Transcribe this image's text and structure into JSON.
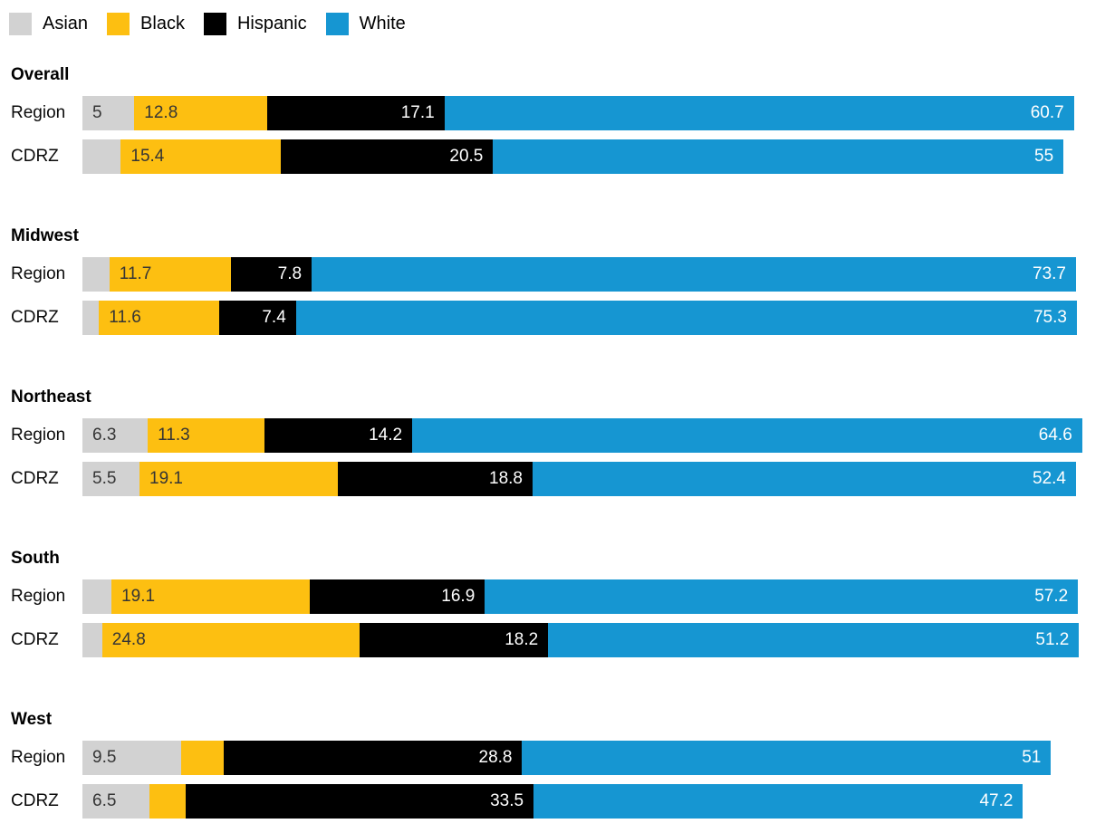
{
  "chart_data": {
    "type": "bar",
    "variant": "horizontal-stacked",
    "unit": "percent",
    "title": "",
    "legend_position": "top-left",
    "grid": false,
    "axes_visible": false,
    "value_label_min": 5,
    "xlim": [
      0,
      100
    ],
    "categories": [
      {
        "key": "asian",
        "label": "Asian",
        "color": "#d2d2d2",
        "value_text_color": "#353535",
        "value_align": "left"
      },
      {
        "key": "black",
        "label": "Black",
        "color": "#fdbf11",
        "value_text_color": "#353535",
        "value_align": "left"
      },
      {
        "key": "hispanic",
        "label": "Hispanic",
        "color": "#000000",
        "value_text_color": "#ffffff",
        "value_align": "right"
      },
      {
        "key": "white",
        "label": "White",
        "color": "#1696d2",
        "value_text_color": "#ffffff",
        "value_align": "right"
      }
    ],
    "row_labels": [
      "Region",
      "CDRZ"
    ],
    "groups": [
      {
        "name": "Overall",
        "rows": [
          {
            "label": "Region",
            "values": {
              "asian": 5,
              "black": 12.8,
              "hispanic": 17.1,
              "white": 60.7
            }
          },
          {
            "label": "CDRZ",
            "values": {
              "asian": 3.7,
              "black": 15.4,
              "hispanic": 20.5,
              "white": 55
            },
            "estimated": [
              "asian"
            ]
          }
        ]
      },
      {
        "name": "Midwest",
        "rows": [
          {
            "label": "Region",
            "values": {
              "asian": 2.6,
              "black": 11.7,
              "hispanic": 7.8,
              "white": 73.7
            },
            "estimated": [
              "asian"
            ]
          },
          {
            "label": "CDRZ",
            "values": {
              "asian": 1.6,
              "black": 11.6,
              "hispanic": 7.4,
              "white": 75.3
            },
            "estimated": [
              "asian"
            ]
          }
        ]
      },
      {
        "name": "Northeast",
        "rows": [
          {
            "label": "Region",
            "values": {
              "asian": 6.3,
              "black": 11.3,
              "hispanic": 14.2,
              "white": 64.6
            }
          },
          {
            "label": "CDRZ",
            "values": {
              "asian": 5.5,
              "black": 19.1,
              "hispanic": 18.8,
              "white": 52.4
            }
          }
        ]
      },
      {
        "name": "South",
        "rows": [
          {
            "label": "Region",
            "values": {
              "asian": 2.8,
              "black": 19.1,
              "hispanic": 16.9,
              "white": 57.2
            },
            "estimated": [
              "asian"
            ]
          },
          {
            "label": "CDRZ",
            "values": {
              "asian": 1.9,
              "black": 24.8,
              "hispanic": 18.2,
              "white": 51.2
            },
            "estimated": [
              "asian"
            ]
          }
        ]
      },
      {
        "name": "West",
        "rows": [
          {
            "label": "Region",
            "values": {
              "asian": 9.5,
              "black": 4.1,
              "hispanic": 28.8,
              "white": 51
            },
            "estimated": [
              "black"
            ]
          },
          {
            "label": "CDRZ",
            "values": {
              "asian": 6.5,
              "black": 3.5,
              "hispanic": 33.5,
              "white": 47.2
            },
            "estimated": [
              "black"
            ]
          }
        ]
      }
    ]
  }
}
